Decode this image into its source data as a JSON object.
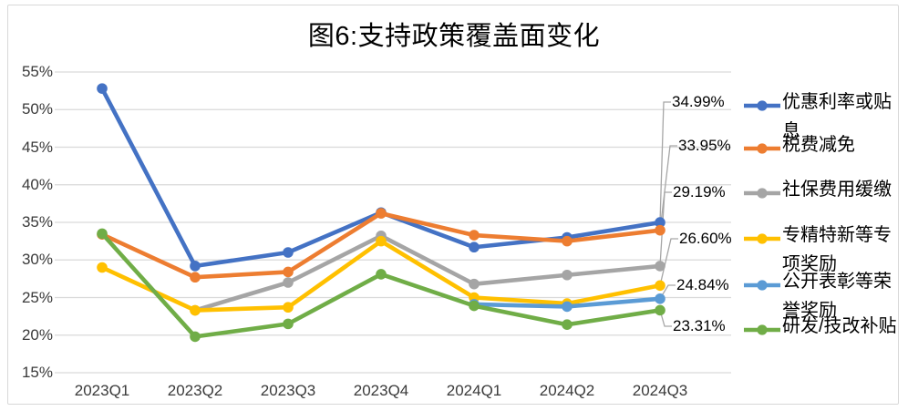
{
  "frame": {
    "border_color": "#d8d8d8",
    "background": "#ffffff"
  },
  "chart_data": {
    "type": "line",
    "title": "图6:支持政策覆盖面变化",
    "categories": [
      "2023Q1",
      "2023Q2",
      "2023Q3",
      "2023Q4",
      "2024Q1",
      "2024Q2",
      "2024Q3"
    ],
    "series": [
      {
        "name": "优惠利率或贴息",
        "color": "#4472C4",
        "values": [
          52.8,
          29.2,
          31.0,
          36.3,
          31.7,
          33.0,
          34.99
        ]
      },
      {
        "name": "税费减免",
        "color": "#ED7D31",
        "values": [
          33.4,
          27.7,
          28.4,
          36.2,
          33.3,
          32.5,
          33.95
        ]
      },
      {
        "name": "社保费用缓缴",
        "color": "#A5A5A5",
        "values": [
          null,
          23.3,
          27.0,
          33.2,
          26.8,
          28.0,
          29.19
        ]
      },
      {
        "name": "专精特新等专项奖励",
        "color": "#FFC000",
        "values": [
          29.0,
          23.3,
          23.7,
          32.5,
          25.0,
          24.2,
          26.6
        ]
      },
      {
        "name": "公开表彰等荣誉奖励",
        "color": "#5B9BD5",
        "values": [
          null,
          null,
          null,
          null,
          24.1,
          23.8,
          24.84
        ]
      },
      {
        "name": "研发/技改补贴",
        "color": "#70AD47",
        "values": [
          33.5,
          19.8,
          21.5,
          28.1,
          23.9,
          21.4,
          23.31
        ]
      }
    ],
    "end_labels": [
      "34.99%",
      "33.95%",
      "29.19%",
      "26.60%",
      "24.84%",
      "23.31%"
    ],
    "y_axis": {
      "ticks": [
        "55%",
        "50%",
        "45%",
        "40%",
        "35%",
        "30%",
        "25%",
        "20%",
        "15%"
      ],
      "min": 15,
      "max": 55,
      "step": 5
    },
    "grid": true,
    "gridline_color": "#D9D9D9",
    "leader_line_color": "#A6A6A6",
    "legend_position": "right",
    "marker": "circle"
  }
}
